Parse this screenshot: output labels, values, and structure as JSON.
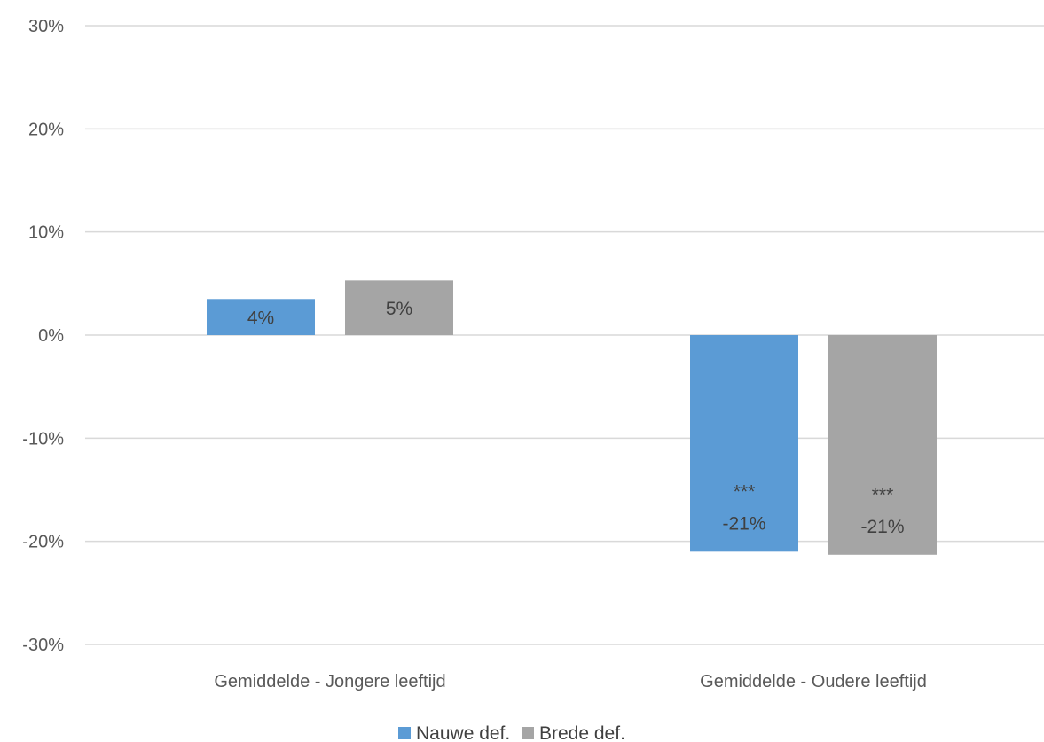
{
  "chart_data": {
    "type": "bar",
    "title": "",
    "xlabel": "",
    "ylabel": "",
    "categories": [
      "Gemiddelde - Jongere leeftijd",
      "Gemiddelde - Oudere leeftijd"
    ],
    "series": [
      {
        "name": "Nauwe def.",
        "color": "#5B9BD5",
        "values": [
          3.5,
          -21
        ],
        "labels": [
          "4%",
          "-21%"
        ],
        "significance": [
          "",
          "***"
        ]
      },
      {
        "name": "Brede def.",
        "color": "#A5A5A5",
        "values": [
          5.3,
          -21.3
        ],
        "labels": [
          "5%",
          "-21%"
        ],
        "significance": [
          "",
          "***"
        ]
      }
    ],
    "ylim": [
      -30,
      30
    ],
    "yticks": [
      30,
      20,
      10,
      0,
      -10,
      -20,
      -30
    ],
    "ytick_labels": [
      "30%",
      "20%",
      "10%",
      "0%",
      "-10%",
      "-20%",
      "-30%"
    ],
    "grid": true,
    "legend_position": "bottom"
  }
}
